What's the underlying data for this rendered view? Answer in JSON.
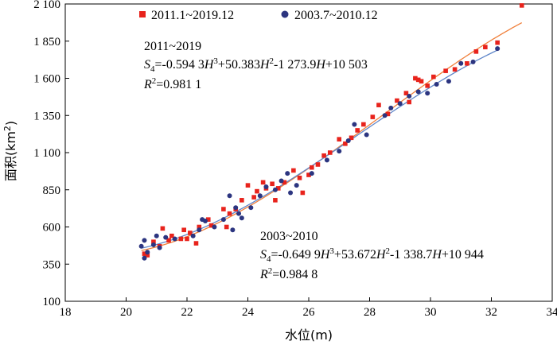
{
  "chart_data": {
    "type": "scatter",
    "xlabel": "水位(m)",
    "ylabel": "面积(km",
    "ylabel_sup": "2",
    "ylabel_close": ")",
    "xlim": [
      18,
      34
    ],
    "ylim": [
      100,
      2100
    ],
    "xticks": [
      "18",
      "20",
      "22",
      "24",
      "26",
      "28",
      "30",
      "32",
      "34"
    ],
    "yticks": [
      "100",
      "350",
      "600",
      "850",
      "1 100",
      "1 350",
      "1 600",
      "1 850",
      "2 100"
    ],
    "legend_position": "top-left",
    "series": [
      {
        "name": "2011.1~2019.12",
        "marker": "square",
        "color": "#e8231c",
        "fit_color": "#f07f3a",
        "fit": {
          "a": -0.5943,
          "b": 50.383,
          "c": -1273.9,
          "d": 10503,
          "x_range": [
            20.5,
            33.0
          ]
        },
        "points": [
          [
            20.6,
            420
          ],
          [
            20.7,
            410
          ],
          [
            20.9,
            500
          ],
          [
            21.1,
            470
          ],
          [
            21.2,
            590
          ],
          [
            21.4,
            510
          ],
          [
            21.5,
            540
          ],
          [
            21.8,
            520
          ],
          [
            21.9,
            580
          ],
          [
            22.0,
            520
          ],
          [
            22.1,
            560
          ],
          [
            22.3,
            490
          ],
          [
            22.4,
            600
          ],
          [
            22.7,
            650
          ],
          [
            22.8,
            610
          ],
          [
            23.2,
            720
          ],
          [
            23.3,
            600
          ],
          [
            23.4,
            690
          ],
          [
            23.6,
            720
          ],
          [
            23.8,
            780
          ],
          [
            24.0,
            880
          ],
          [
            24.2,
            800
          ],
          [
            24.3,
            840
          ],
          [
            24.5,
            900
          ],
          [
            24.6,
            860
          ],
          [
            24.8,
            890
          ],
          [
            24.9,
            780
          ],
          [
            25.0,
            860
          ],
          [
            25.2,
            900
          ],
          [
            25.5,
            980
          ],
          [
            25.7,
            930
          ],
          [
            25.8,
            830
          ],
          [
            26.0,
            950
          ],
          [
            26.1,
            1000
          ],
          [
            26.3,
            1020
          ],
          [
            26.5,
            1080
          ],
          [
            26.7,
            1100
          ],
          [
            27.0,
            1190
          ],
          [
            27.2,
            1160
          ],
          [
            27.4,
            1200
          ],
          [
            27.6,
            1250
          ],
          [
            27.8,
            1290
          ],
          [
            28.1,
            1340
          ],
          [
            28.3,
            1420
          ],
          [
            28.6,
            1360
          ],
          [
            28.9,
            1450
          ],
          [
            29.2,
            1500
          ],
          [
            29.3,
            1440
          ],
          [
            29.5,
            1600
          ],
          [
            29.6,
            1590
          ],
          [
            29.7,
            1580
          ],
          [
            29.9,
            1550
          ],
          [
            30.1,
            1610
          ],
          [
            30.5,
            1650
          ],
          [
            30.8,
            1660
          ],
          [
            31.2,
            1700
          ],
          [
            31.5,
            1780
          ],
          [
            31.8,
            1810
          ],
          [
            32.2,
            1840
          ],
          [
            33.0,
            2090
          ]
        ]
      },
      {
        "name": "2003.7~2010.12",
        "marker": "circle",
        "color": "#2c3580",
        "fit_color": "#5f86c9",
        "fit": {
          "a": -0.6499,
          "b": 53.672,
          "c": -1338.7,
          "d": 10944,
          "x_range": [
            20.5,
            32.2
          ]
        },
        "points": [
          [
            20.5,
            470
          ],
          [
            20.6,
            390
          ],
          [
            20.6,
            510
          ],
          [
            20.7,
            430
          ],
          [
            20.9,
            480
          ],
          [
            21.0,
            540
          ],
          [
            21.1,
            460
          ],
          [
            21.3,
            530
          ],
          [
            21.6,
            520
          ],
          [
            22.2,
            540
          ],
          [
            22.4,
            580
          ],
          [
            22.5,
            650
          ],
          [
            22.6,
            640
          ],
          [
            22.9,
            600
          ],
          [
            23.2,
            650
          ],
          [
            23.4,
            810
          ],
          [
            23.5,
            580
          ],
          [
            23.6,
            730
          ],
          [
            23.7,
            690
          ],
          [
            23.8,
            660
          ],
          [
            24.1,
            730
          ],
          [
            24.4,
            810
          ],
          [
            24.6,
            870
          ],
          [
            24.9,
            850
          ],
          [
            25.1,
            910
          ],
          [
            25.3,
            960
          ],
          [
            25.4,
            830
          ],
          [
            25.6,
            880
          ],
          [
            26.1,
            960
          ],
          [
            26.6,
            1050
          ],
          [
            27.0,
            1110
          ],
          [
            27.3,
            1180
          ],
          [
            27.5,
            1290
          ],
          [
            27.9,
            1220
          ],
          [
            28.5,
            1350
          ],
          [
            28.7,
            1400
          ],
          [
            29.0,
            1430
          ],
          [
            29.3,
            1480
          ],
          [
            29.6,
            1510
          ],
          [
            29.9,
            1500
          ],
          [
            30.2,
            1560
          ],
          [
            30.6,
            1580
          ],
          [
            31.0,
            1700
          ],
          [
            31.4,
            1710
          ],
          [
            32.2,
            1800
          ]
        ]
      }
    ],
    "annotations": [
      {
        "period": "2011~2019",
        "S": "S",
        "S_sub": "4",
        "t1": "=-0.594 3",
        "H": "H",
        "p3": "3",
        "t2": "+50.383",
        "p2": "2",
        "t3": "-1 273.9",
        "t4": "+10 503",
        "R": "R",
        "r_sup": "2",
        "r_val": "=0.981 1"
      },
      {
        "period": "2003~2010",
        "S": "S",
        "S_sub": "4",
        "t1": "=-0.649 9",
        "H": "H",
        "p3": "3",
        "t2": "+53.672",
        "p2": "2",
        "t3": "-1 338.7",
        "t4": "+10 944",
        "R": "R",
        "r_sup": "2",
        "r_val": "=0.984 8"
      }
    ]
  }
}
